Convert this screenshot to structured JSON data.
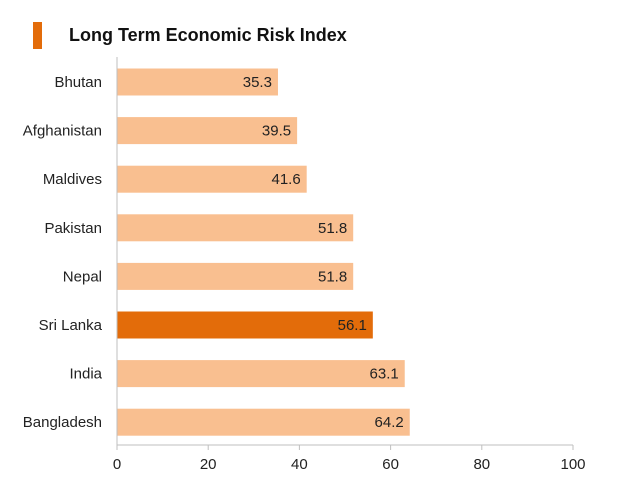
{
  "chart_data": {
    "type": "bar",
    "orientation": "horizontal",
    "title": "Long Term Economic Risk Index",
    "categories": [
      "Bhutan",
      "Afghanistan",
      "Maldives",
      "Pakistan",
      "Nepal",
      "Sri Lanka",
      "India",
      "Bangladesh"
    ],
    "values": [
      35.3,
      39.5,
      41.6,
      51.8,
      51.8,
      56.1,
      63.1,
      64.2
    ],
    "value_labels": [
      "35.3",
      "39.5",
      "41.6",
      "51.8",
      "51.8",
      "56.1",
      "63.1",
      "64.2"
    ],
    "highlight": "Sri Lanka",
    "xlim": [
      0,
      100
    ],
    "xticks": [
      0,
      20,
      40,
      60,
      80,
      100
    ],
    "xtick_labels": [
      "0",
      "20",
      "40",
      "60",
      "80",
      "100"
    ],
    "xlabel": "",
    "ylabel": "",
    "grid": false,
    "legend": "none"
  },
  "colors": {
    "bar": "#f9bf90",
    "highlight": "#e36c0a",
    "title_marker": "#e36c0a",
    "axis": "#bfbfbf",
    "text": "#222222"
  }
}
